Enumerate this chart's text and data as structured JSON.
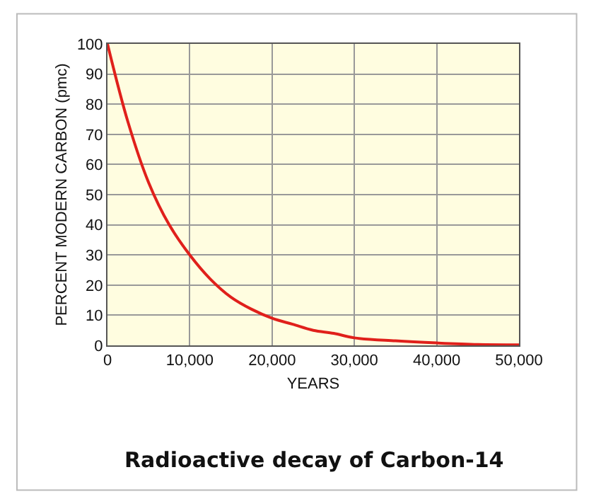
{
  "chart_data": {
    "type": "line",
    "title": "Radioactive decay of Carbon-14",
    "xlabel": "YEARS",
    "ylabel": "PERCENT MODERN CARBON (pmc)",
    "x": [
      0,
      2500,
      5000,
      7500,
      10000,
      12500,
      15000,
      17500,
      20000,
      22500,
      25000,
      27500,
      30000,
      35000,
      40000,
      45000,
      50000
    ],
    "series": [
      {
        "color": "#e0201b",
        "values": [
          100,
          74,
          54,
          40,
          30,
          22,
          16,
          12,
          9,
          7,
          5,
          4,
          2.5,
          1.5,
          0.8,
          0.3,
          0.2
        ]
      }
    ],
    "xlim": [
      0,
      50000
    ],
    "ylim": [
      0,
      100
    ],
    "xticks": [
      0,
      {
        "value": 10000,
        "label": "10,000"
      },
      {
        "value": 20000,
        "label": "20,000"
      },
      {
        "value": 30000,
        "label": "30,000"
      },
      {
        "value": 40000,
        "label": "40,000"
      },
      {
        "value": 50000,
        "label": "50,000"
      }
    ],
    "yticks": [
      0,
      10,
      20,
      30,
      40,
      50,
      60,
      70,
      80,
      90,
      100
    ],
    "grid": true,
    "marker": "none",
    "line_style": "solid"
  }
}
